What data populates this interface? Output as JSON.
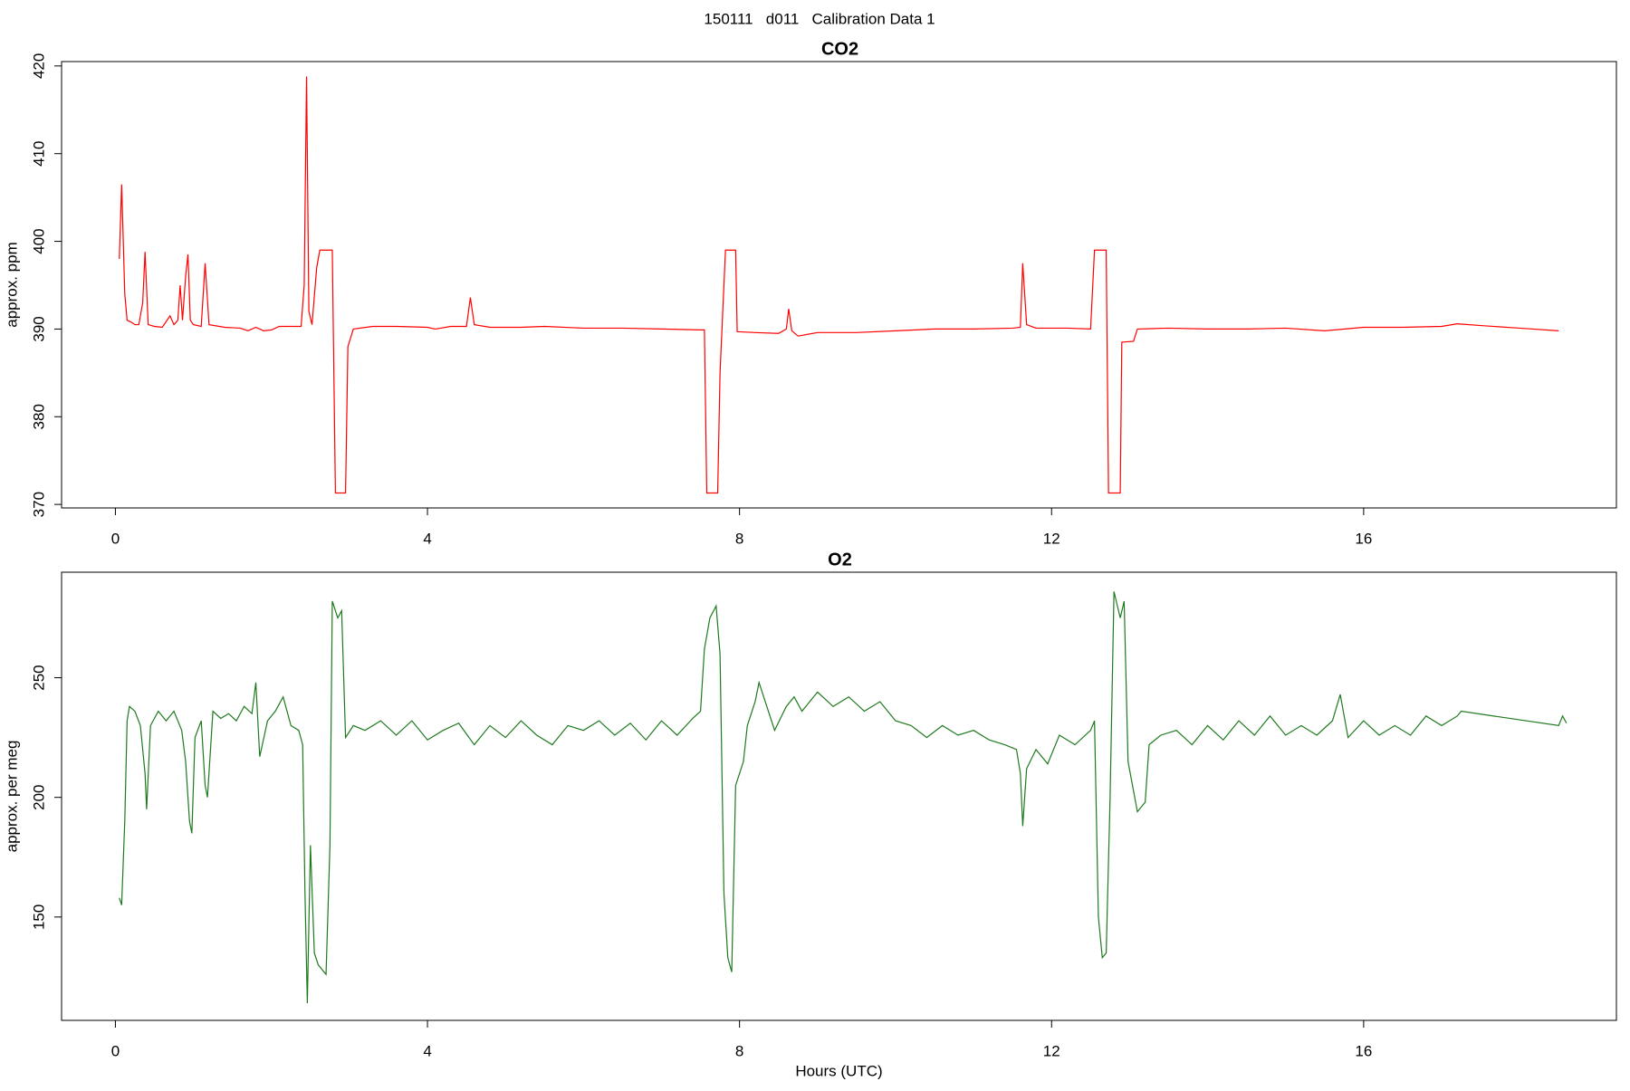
{
  "page_title": "150111   d011   Calibration Data 1",
  "chart_data": [
    {
      "type": "line",
      "title": "CO2",
      "ylabel": "approx. ppm",
      "color": "#ff0000",
      "xlim": [
        -0.69,
        19.24
      ],
      "ylim": [
        369.6,
        420.5
      ],
      "xticks": [
        0,
        4,
        8,
        12,
        16
      ],
      "yticks": [
        370,
        380,
        390,
        400,
        410,
        420
      ],
      "x": [
        0.05,
        0.08,
        0.12,
        0.15,
        0.2,
        0.25,
        0.3,
        0.35,
        0.38,
        0.42,
        0.5,
        0.6,
        0.7,
        0.75,
        0.8,
        0.83,
        0.86,
        0.9,
        0.93,
        0.96,
        1.0,
        1.1,
        1.15,
        1.2,
        1.4,
        1.6,
        1.7,
        1.8,
        1.9,
        2.0,
        2.1,
        2.3,
        2.38,
        2.42,
        2.45,
        2.48,
        2.52,
        2.58,
        2.62,
        2.78,
        2.82,
        2.95,
        2.98,
        3.05,
        3.3,
        3.6,
        4.0,
        4.1,
        4.3,
        4.5,
        4.55,
        4.6,
        4.8,
        5.2,
        5.5,
        6.0,
        6.5,
        7.0,
        7.5,
        7.55,
        7.58,
        7.72,
        7.75,
        7.82,
        7.95,
        7.97,
        8.2,
        8.5,
        8.6,
        8.63,
        8.67,
        8.75,
        9.0,
        9.5,
        10,
        10.5,
        11,
        11.5,
        11.6,
        11.63,
        11.68,
        11.8,
        12.2,
        12.5,
        12.55,
        12.7,
        12.73,
        12.88,
        12.9,
        13.05,
        13.1,
        13.5,
        14,
        14.5,
        15,
        15.5,
        16,
        16.5,
        17,
        17.2,
        17.5,
        18,
        18.5
      ],
      "values": [
        398,
        406.5,
        394,
        391,
        390.8,
        390.5,
        390.5,
        393,
        398.8,
        390.5,
        390.3,
        390.2,
        391.5,
        390.5,
        391,
        395,
        391,
        396,
        398.5,
        391,
        390.5,
        390.3,
        397.5,
        390.5,
        390.2,
        390.1,
        389.8,
        390.2,
        389.8,
        389.9,
        390.3,
        390.3,
        390.3,
        395,
        418.8,
        392,
        390.5,
        397,
        399,
        399,
        371.3,
        371.3,
        388,
        390,
        390.3,
        390.3,
        390.2,
        390,
        390.3,
        390.3,
        393.6,
        390.5,
        390.2,
        390.2,
        390.3,
        390.1,
        390.1,
        390,
        389.9,
        389.9,
        371.3,
        371.3,
        385,
        399,
        399,
        389.7,
        389.6,
        389.5,
        390,
        392.3,
        389.8,
        389.2,
        389.6,
        389.6,
        389.8,
        390,
        390,
        390.1,
        390.2,
        397.5,
        390.5,
        390.1,
        390.1,
        390,
        399,
        399,
        371.3,
        371.3,
        388.5,
        388.6,
        390,
        390.1,
        390,
        390,
        390.1,
        389.8,
        390.2,
        390.2,
        390.3,
        390.6,
        390.4,
        390.1,
        389.8
      ]
    },
    {
      "type": "line",
      "title": "O2",
      "ylabel": "approx. per meg",
      "xlabel": "Hours (UTC)",
      "color": "#1f7a1f",
      "xlim": [
        -0.69,
        19.24
      ],
      "ylim": [
        106.8,
        294.1
      ],
      "xticks": [
        0,
        4,
        8,
        12,
        16
      ],
      "yticks": [
        150,
        200,
        250
      ],
      "x": [
        0.05,
        0.08,
        0.12,
        0.15,
        0.18,
        0.25,
        0.32,
        0.38,
        0.4,
        0.45,
        0.55,
        0.65,
        0.75,
        0.85,
        0.9,
        0.95,
        0.98,
        1.02,
        1.1,
        1.15,
        1.18,
        1.25,
        1.35,
        1.45,
        1.55,
        1.65,
        1.75,
        1.8,
        1.85,
        1.95,
        2.05,
        2.15,
        2.25,
        2.35,
        2.4,
        2.43,
        2.46,
        2.5,
        2.55,
        2.6,
        2.7,
        2.75,
        2.78,
        2.85,
        2.9,
        2.95,
        3.05,
        3.2,
        3.4,
        3.6,
        3.8,
        4.0,
        4.2,
        4.4,
        4.6,
        4.8,
        5.0,
        5.2,
        5.4,
        5.6,
        5.8,
        6.0,
        6.2,
        6.4,
        6.6,
        6.8,
        7.0,
        7.2,
        7.4,
        7.5,
        7.55,
        7.62,
        7.7,
        7.75,
        7.8,
        7.85,
        7.9,
        7.95,
        8.0,
        8.05,
        8.1,
        8.2,
        8.25,
        8.35,
        8.45,
        8.6,
        8.7,
        8.8,
        9.0,
        9.2,
        9.4,
        9.6,
        9.8,
        10.0,
        10.2,
        10.4,
        10.6,
        10.8,
        11.0,
        11.2,
        11.4,
        11.55,
        11.6,
        11.63,
        11.68,
        11.8,
        11.95,
        12.1,
        12.3,
        12.5,
        12.55,
        12.6,
        12.65,
        12.7,
        12.75,
        12.8,
        12.88,
        12.93,
        12.98,
        13.1,
        13.2,
        13.25,
        13.4,
        13.6,
        13.8,
        14.0,
        14.2,
        14.4,
        14.6,
        14.8,
        15.0,
        15.2,
        15.4,
        15.6,
        15.7,
        15.8,
        16.0,
        16.2,
        16.4,
        16.6,
        16.8,
        17.0,
        17.2,
        17.25,
        18.5,
        18.55,
        18.6
      ],
      "values": [
        158,
        155,
        190,
        232,
        238,
        236,
        230,
        210,
        195,
        230,
        236,
        232,
        236,
        228,
        215,
        190,
        185,
        225,
        232,
        205,
        200,
        236,
        233,
        235,
        232,
        238,
        235,
        248,
        217,
        232,
        236,
        242,
        230,
        228,
        222,
        160,
        114,
        180,
        135,
        130,
        126,
        180,
        282,
        275,
        278,
        225,
        230,
        228,
        232,
        226,
        232,
        224,
        228,
        231,
        222,
        230,
        225,
        232,
        226,
        222,
        230,
        228,
        232,
        226,
        231,
        224,
        232,
        226,
        233,
        236,
        262,
        275,
        280,
        260,
        160,
        133,
        127,
        205,
        210,
        215,
        230,
        240,
        248,
        238,
        228,
        238,
        242,
        236,
        244,
        238,
        242,
        236,
        240,
        232,
        230,
        225,
        230,
        226,
        228,
        224,
        222,
        220,
        210,
        188,
        212,
        220,
        214,
        226,
        222,
        228,
        232,
        150,
        133,
        135,
        200,
        286,
        275,
        282,
        215,
        194,
        198,
        222,
        226,
        228,
        222,
        230,
        224,
        232,
        226,
        234,
        226,
        230,
        226,
        232,
        243,
        225,
        232,
        226,
        230,
        226,
        234,
        230,
        234,
        236,
        230,
        234,
        231
      ]
    }
  ]
}
